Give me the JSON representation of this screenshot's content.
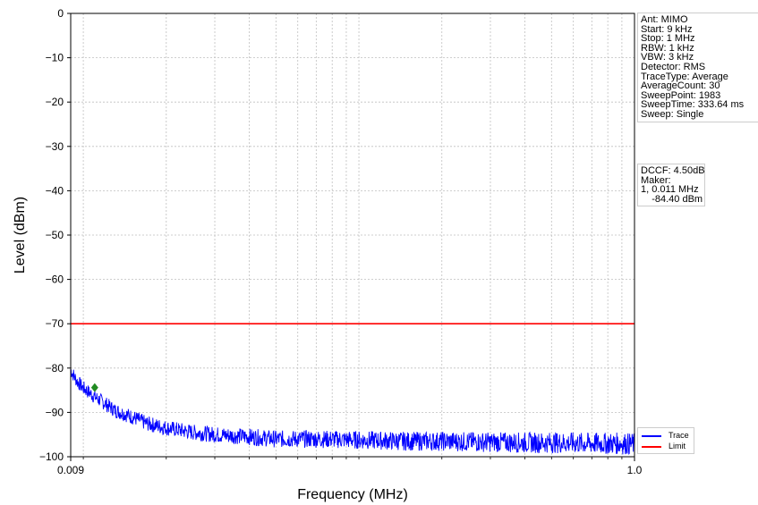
{
  "chart_data": {
    "type": "line",
    "xlabel": "Frequency (MHz)",
    "ylabel": "Level (dBm)",
    "xlim": [
      0.009,
      1.0
    ],
    "ylim": [
      -100,
      0
    ],
    "x_scale": "log",
    "x_tick_labels": [
      "0.009",
      "1.0"
    ],
    "y_ticks": [
      0,
      -10,
      -20,
      -30,
      -40,
      -50,
      -60,
      -70,
      -80,
      -90,
      -100
    ],
    "grid": true,
    "legend_position": "bottom-right",
    "series": [
      {
        "name": "Trace",
        "color": "#0000ff",
        "x": [
          0.009,
          0.0095,
          0.01,
          0.011,
          0.012,
          0.013,
          0.015,
          0.017,
          0.02,
          0.025,
          0.03,
          0.04,
          0.05,
          0.07,
          0.1,
          0.15,
          0.2,
          0.3,
          0.4,
          0.5,
          0.6,
          0.7,
          0.8,
          0.85,
          0.9,
          1.0
        ],
        "y": [
          -80.5,
          -83.0,
          -84.5,
          -86.5,
          -88.0,
          -89.5,
          -91.0,
          -92.5,
          -93.5,
          -94.5,
          -95.0,
          -95.5,
          -96.0,
          -96.0,
          -96.2,
          -96.5,
          -96.5,
          -96.7,
          -96.8,
          -96.8,
          -96.9,
          -97.0,
          -97.0,
          -97.0,
          -97.0,
          -97.2
        ]
      },
      {
        "name": "Limit",
        "color": "#ff0000",
        "x": [
          0.009,
          1.0
        ],
        "y": [
          -70,
          -70
        ]
      }
    ],
    "markers": [
      {
        "label": "1",
        "x": 0.011,
        "y": -84.4,
        "color": "#228b22"
      }
    ]
  },
  "settings_box": {
    "lines": [
      "Ant: MIMO",
      "Start: 9 kHz",
      "Stop: 1 MHz",
      "RBW: 1 kHz",
      "VBW: 3 kHz",
      "Detector: RMS",
      "TraceType: Average",
      "AverageCount: 30",
      "SweepPoint: 1983",
      "SweepTime: 333.64 ms",
      "Sweep: Single"
    ]
  },
  "marker_box": {
    "lines": [
      "DCCF: 4.50dB",
      "Maker:",
      "1, 0.011 MHz",
      "    -84.40 dBm"
    ]
  },
  "legend": {
    "entries": [
      {
        "label": "Trace",
        "color": "#0000ff"
      },
      {
        "label": "Limit",
        "color": "#ff0000"
      }
    ]
  }
}
